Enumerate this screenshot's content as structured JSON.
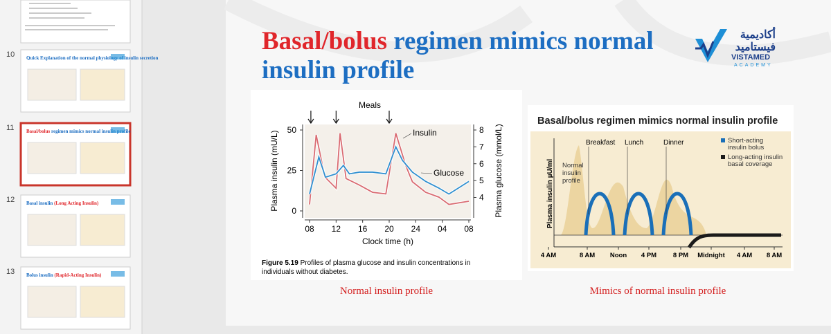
{
  "thumbnails": [
    {
      "number": "10",
      "title": "Quick Explanation of the normal physiology of insulin secretion"
    },
    {
      "number": "11",
      "title_red": "Basal/bolus",
      "title_blue": "regimen mimics normal insulin profile"
    },
    {
      "number": "12",
      "title_blue": "Basal insulin",
      "title_red": "(Long Acting Insulin)"
    },
    {
      "number": "13",
      "title_blue": "Bolus insulin",
      "title_red": "(Rapid-Acting Insulin)"
    }
  ],
  "slide": {
    "title_red": "Basal/bolus",
    "title_blue_1": "regimen mimics normal",
    "title_blue_2": "insulin profile",
    "logo": {
      "arabic_1": "أكاديمية",
      "arabic_2": "فيستاميد",
      "name": "VISTAMED",
      "sub": "ACADEMY"
    },
    "figure1": {
      "type": "line",
      "annotation": "Meals",
      "meal_times": [
        8.2,
        12,
        20
      ],
      "x_label": "Clock time (h)",
      "y_label": "Plasma insulin (mU/L)",
      "y2_label": "Plasma glucose (mmol/L)",
      "xlim": [
        8,
        32
      ],
      "xticks": [
        {
          "value": 8,
          "label": "08"
        },
        12,
        16,
        20,
        24,
        {
          "value": 28,
          "label": "04"
        },
        {
          "value": 32,
          "label": "08"
        }
      ],
      "ylim": [
        0,
        50
      ],
      "yticks": [
        0,
        25,
        50
      ],
      "y2lim": [
        3.2,
        8
      ],
      "y2ticks": [
        4,
        5,
        6,
        7,
        8
      ],
      "series": [
        {
          "name": "Insulin",
          "color": "#d96b72",
          "x": [
            8,
            9,
            10.3,
            12,
            12.6,
            13.5,
            15.5,
            17.5,
            19.5,
            21,
            22.5,
            23.5,
            25.5,
            27.5,
            29,
            32
          ],
          "values": [
            4,
            47,
            21,
            14,
            48,
            20,
            16,
            11.5,
            10.5,
            48,
            28,
            18,
            11.5,
            8.5,
            4,
            6
          ]
        },
        {
          "name": "Glucose",
          "color": "#2f8fd0",
          "axis": "y2",
          "x": [
            8,
            9.4,
            10.4,
            12,
            13.1,
            14,
            15.5,
            17.5,
            19.5,
            21,
            22,
            23.5,
            25.5,
            27.5,
            29,
            32
          ],
          "values": [
            4.2,
            6.4,
            5.2,
            5.4,
            5.9,
            5.4,
            5.5,
            5.5,
            5.4,
            7,
            6.2,
            5.5,
            4.95,
            4.55,
            4.2,
            4.95
          ]
        }
      ],
      "caption_bold": "Figure 5.19",
      "caption": "Profiles of plasma glucose and insulin concentrations in",
      "caption_2": "individuals without diabetes.",
      "subcaption": "Normal insulin profile"
    },
    "figure2": {
      "title": "Basal/bolus regimen mimics normal insulin profile",
      "y_label": "Plasma insulin µU/ml",
      "meals": [
        "Breakfast",
        "Lunch",
        "Dinner"
      ],
      "normal_label": [
        "Normal",
        "insulin",
        "profile"
      ],
      "xticks": [
        "4 AM",
        "8 AM",
        "Noon",
        "4 PM",
        "8 PM",
        "Midnight",
        "4 AM",
        "8 AM"
      ],
      "legend": [
        {
          "lines": [
            "Short-acting",
            "insulin bolus"
          ],
          "color": "#1a6fb8"
        },
        {
          "lines": [
            "Long-acting insulin",
            "basal coverage"
          ],
          "color": "#1a1a1a"
        }
      ],
      "subcaption": "Mimics of normal insulin profile"
    }
  }
}
